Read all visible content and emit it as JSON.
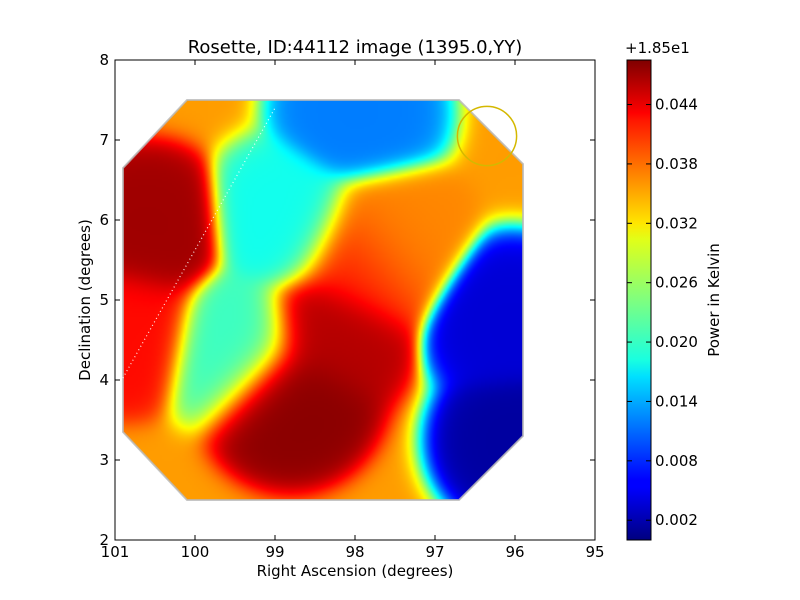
{
  "chart_data": {
    "type": "heatmap",
    "title": "Rosette, ID:44112 image (1395.0,YY)",
    "xlabel": "Right Ascension (degrees)",
    "ylabel": "Declination (degrees)",
    "xlim": [
      101,
      95
    ],
    "ylim": [
      2,
      8
    ],
    "x_ticks": [
      101,
      100,
      99,
      98,
      97,
      96,
      95
    ],
    "x_tick_labels": [
      "101",
      "100",
      "99",
      "98",
      "97",
      "96",
      "95"
    ],
    "y_ticks": [
      2,
      3,
      4,
      5,
      6,
      7,
      8
    ],
    "y_tick_labels": [
      "2",
      "3",
      "4",
      "5",
      "6",
      "7",
      "8"
    ],
    "colorbar": {
      "label": "Power in Kelvin",
      "offset_label": "+1.85e1",
      "range": [
        0.0,
        0.0485
      ],
      "ticks": [
        0.002,
        0.008,
        0.014,
        0.02,
        0.026,
        0.032,
        0.038,
        0.044
      ],
      "tick_labels": [
        "0.002",
        "0.008",
        "0.014",
        "0.020",
        "0.026",
        "0.032",
        "0.038",
        "0.044"
      ],
      "colormap": "jet"
    },
    "field_boundary_octagon": [
      [
        100.1,
        7.5
      ],
      [
        96.7,
        7.5
      ],
      [
        95.9,
        6.7
      ],
      [
        95.9,
        3.3
      ],
      [
        96.7,
        2.5
      ],
      [
        100.1,
        2.5
      ],
      [
        100.9,
        3.35
      ],
      [
        100.9,
        6.65
      ]
    ],
    "features": [
      {
        "kind": "max",
        "ra": 100.6,
        "dec": 5.8,
        "value": 0.047
      },
      {
        "kind": "max",
        "ra": 98.8,
        "dec": 3.8,
        "value": 0.048
      },
      {
        "kind": "max",
        "ra": 98.35,
        "dec": 4.6,
        "value": 0.046
      },
      {
        "kind": "max",
        "ra": 100.85,
        "dec": 4.7,
        "value": 0.042
      },
      {
        "kind": "max",
        "ra": 97.95,
        "dec": 5.45,
        "value": 0.041
      },
      {
        "kind": "max",
        "ra": 97.6,
        "dec": 5.75,
        "value": 0.036
      },
      {
        "kind": "min",
        "ra": 95.95,
        "dec": 3.25,
        "value": 0.0015
      },
      {
        "kind": "min",
        "ra": 96.05,
        "dec": 4.7,
        "value": 0.004
      },
      {
        "kind": "min",
        "ra": 97.95,
        "dec": 7.35,
        "value": 0.012
      },
      {
        "kind": "min",
        "ra": 99.45,
        "dec": 4.45,
        "value": 0.021
      },
      {
        "kind": "min",
        "ra": 98.85,
        "dec": 5.95,
        "value": 0.019
      }
    ],
    "background_value": 0.035,
    "dotted_line": {
      "from": [
        101.0,
        3.85
      ],
      "to": [
        99.0,
        7.4
      ]
    },
    "circle": {
      "ra": 96.35,
      "dec": 7.05,
      "radius_deg": 0.37,
      "color": "#d4b800"
    }
  }
}
